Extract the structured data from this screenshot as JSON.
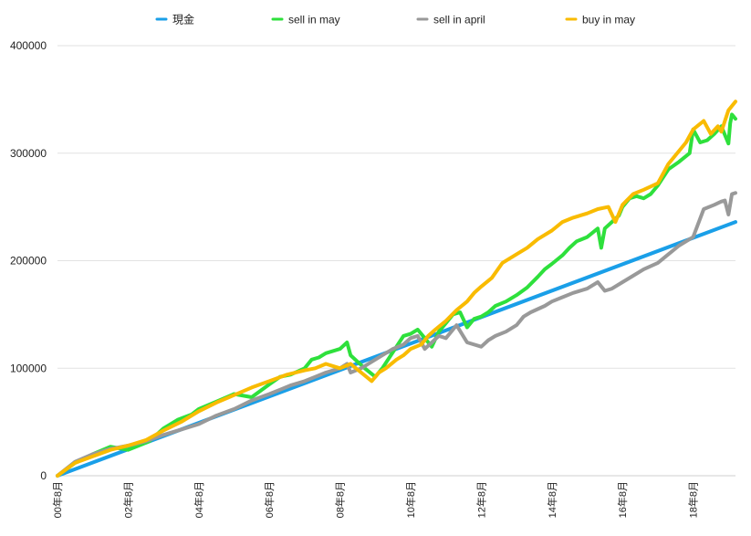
{
  "chart_data": {
    "type": "line",
    "title": "",
    "xlabel": "",
    "ylabel": "",
    "ylim": [
      0,
      400000
    ],
    "y_ticks": [
      0,
      100000,
      200000,
      300000,
      400000
    ],
    "y_tick_labels": [
      "0",
      "100000",
      "200000",
      "300000",
      "400000"
    ],
    "x_range": [
      0,
      19.2
    ],
    "x_ticks": [
      0,
      2,
      4,
      6,
      8,
      10,
      12,
      14,
      16,
      18
    ],
    "x_tick_labels": [
      "00年8月",
      "02年8月",
      "04年8月",
      "06年8月",
      "08年8月",
      "10年8月",
      "12年8月",
      "14年8月",
      "16年8月",
      "18年8月"
    ],
    "grid": "horizontal",
    "legend_position": "top",
    "series": [
      {
        "name": "現金",
        "color": "#1a9fe8",
        "x": [
          0,
          19.2
        ],
        "y": [
          0,
          236000
        ]
      },
      {
        "name": "sell in may",
        "color": "#2ee03c",
        "x": [
          0,
          0.5,
          1,
          1.5,
          2,
          2.3,
          2.6,
          3,
          3.4,
          3.8,
          4,
          4.5,
          5,
          5.5,
          6,
          6.3,
          6.6,
          7,
          7.2,
          7.4,
          7.6,
          8,
          8.2,
          8.3,
          8.5,
          8.7,
          9,
          9.2,
          9.5,
          9.8,
          10,
          10.2,
          10.4,
          10.6,
          10.8,
          11,
          11.2,
          11.4,
          11.6,
          11.8,
          12,
          12.2,
          12.4,
          12.7,
          13,
          13.3,
          13.6,
          13.8,
          14,
          14.3,
          14.5,
          14.7,
          15,
          15.3,
          15.4,
          15.5,
          15.7,
          15.9,
          16,
          16.2,
          16.4,
          16.6,
          16.8,
          17,
          17.3,
          17.6,
          17.9,
          18,
          18.2,
          18.4,
          18.6,
          18.8,
          19,
          19.05,
          19.1,
          19.2
        ],
        "y": [
          0,
          12000,
          20000,
          27000,
          24000,
          28000,
          32000,
          44000,
          52000,
          57000,
          62000,
          69000,
          76000,
          73000,
          85000,
          92000,
          94000,
          100000,
          108000,
          110000,
          114000,
          118000,
          124000,
          112000,
          106000,
          100000,
          92000,
          100000,
          115000,
          130000,
          132000,
          136000,
          128000,
          120000,
          134000,
          142000,
          150000,
          152000,
          138000,
          146000,
          148000,
          152000,
          158000,
          162000,
          168000,
          175000,
          185000,
          192000,
          197000,
          205000,
          212000,
          218000,
          222000,
          230000,
          212000,
          230000,
          236000,
          242000,
          250000,
          258000,
          260000,
          258000,
          262000,
          270000,
          285000,
          292000,
          300000,
          322000,
          310000,
          312000,
          318000,
          325000,
          309000,
          328000,
          336000,
          332000
        ]
      },
      {
        "name": "sell in april",
        "color": "#999999",
        "x": [
          0,
          0.5,
          1,
          1.5,
          2,
          2.5,
          3,
          3.5,
          4,
          4.5,
          5,
          5.5,
          6,
          6.3,
          6.6,
          7,
          7.3,
          7.6,
          8,
          8.2,
          8.3,
          8.6,
          8.9,
          9.2,
          9.5,
          9.8,
          10,
          10.2,
          10.4,
          10.6,
          10.8,
          11,
          11.3,
          11.6,
          12,
          12.2,
          12.4,
          12.7,
          13,
          13.2,
          13.4,
          13.8,
          14,
          14.3,
          14.6,
          15,
          15.3,
          15.5,
          15.7,
          16,
          16.3,
          16.6,
          17,
          17.3,
          17.6,
          18,
          18.3,
          18.6,
          18.8,
          18.9,
          19,
          19.1,
          19.2
        ],
        "y": [
          0,
          13000,
          20000,
          25000,
          28000,
          32000,
          38000,
          43000,
          48000,
          56000,
          62000,
          70000,
          76000,
          80000,
          84000,
          88000,
          92000,
          96000,
          100000,
          104000,
          96000,
          100000,
          106000,
          112000,
          118000,
          122000,
          128000,
          130000,
          118000,
          124000,
          130000,
          128000,
          140000,
          124000,
          120000,
          126000,
          130000,
          134000,
          140000,
          148000,
          152000,
          158000,
          162000,
          166000,
          170000,
          174000,
          180000,
          172000,
          174000,
          180000,
          186000,
          192000,
          198000,
          206000,
          214000,
          222000,
          248000,
          252000,
          255000,
          256000,
          243000,
          262000,
          263000
        ]
      },
      {
        "name": "buy in may",
        "color": "#f9bb00",
        "x": [
          0,
          0.5,
          1,
          1.5,
          2,
          2.5,
          3,
          3.5,
          4,
          4.5,
          5,
          5.5,
          6,
          6.5,
          7,
          7.3,
          7.6,
          8,
          8.3,
          8.6,
          8.9,
          9.1,
          9.3,
          9.6,
          9.8,
          10,
          10.3,
          10.5,
          10.7,
          11,
          11.3,
          11.6,
          11.8,
          12,
          12.3,
          12.6,
          13,
          13.3,
          13.6,
          14,
          14.3,
          14.6,
          15,
          15.3,
          15.6,
          15.8,
          16,
          16.3,
          16.6,
          17,
          17.3,
          17.6,
          17.8,
          18,
          18.3,
          18.5,
          18.7,
          18.8,
          19,
          19.2
        ],
        "y": [
          0,
          12000,
          18000,
          24000,
          28000,
          33000,
          42000,
          50000,
          60000,
          68000,
          75000,
          82000,
          88000,
          94000,
          98000,
          100000,
          104000,
          100000,
          104000,
          96000,
          88000,
          96000,
          100000,
          108000,
          112000,
          118000,
          122000,
          130000,
          136000,
          144000,
          154000,
          162000,
          170000,
          176000,
          184000,
          198000,
          206000,
          212000,
          220000,
          228000,
          236000,
          240000,
          244000,
          248000,
          250000,
          236000,
          252000,
          262000,
          266000,
          272000,
          290000,
          302000,
          310000,
          322000,
          330000,
          318000,
          325000,
          320000,
          340000,
          348000
        ]
      }
    ]
  }
}
